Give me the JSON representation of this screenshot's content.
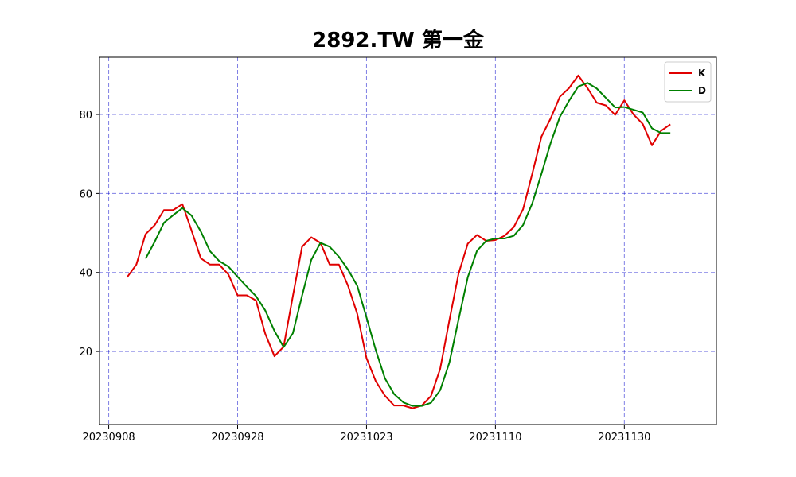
{
  "chart_data": {
    "type": "line",
    "title": "2892.TW 第一金",
    "xlabel": "",
    "ylabel": "",
    "x_tick_labels": [
      "20230908",
      "20230928",
      "20231023",
      "20231110",
      "20231130"
    ],
    "x_tick_index": [
      -2,
      12,
      26,
      40,
      54
    ],
    "x_range": [
      -3,
      64
    ],
    "y_ticks": [
      20,
      40,
      60,
      80
    ],
    "ylim": [
      1.5,
      94.5
    ],
    "grid": true,
    "grid_color": "#0000cc",
    "legend_position": "top-right",
    "series": [
      {
        "name": "K",
        "color": "#e00000",
        "start_index": 0,
        "values": [
          38.8,
          42.0,
          49.7,
          52.0,
          55.8,
          55.8,
          57.3,
          50.6,
          43.6,
          42.0,
          42.0,
          39.5,
          34.2,
          34.2,
          32.9,
          24.5,
          18.8,
          21.2,
          34.0,
          46.5,
          48.9,
          47.5,
          42.0,
          42.0,
          36.6,
          29.5,
          18.3,
          12.5,
          8.8,
          6.3,
          6.3,
          5.6,
          6.3,
          8.7,
          15.6,
          27.9,
          39.7,
          47.3,
          49.5,
          48.0,
          48.2,
          49.3,
          51.5,
          56.0,
          65.0,
          74.4,
          79.0,
          84.5,
          86.7,
          89.9,
          86.7,
          83.0,
          82.3,
          79.9,
          83.6,
          80.0,
          77.6,
          72.2,
          75.9,
          77.5
        ]
      },
      {
        "name": "D",
        "color": "#008000",
        "start_index": 2,
        "values": [
          43.5,
          47.8,
          52.6,
          54.5,
          56.3,
          54.4,
          50.4,
          45.4,
          42.9,
          41.5,
          38.9,
          36.4,
          34.0,
          30.4,
          25.2,
          21.1,
          24.6,
          34.1,
          43.2,
          47.5,
          46.5,
          44.0,
          40.7,
          36.6,
          28.6,
          20.4,
          13.2,
          9.2,
          7.1,
          6.2,
          6.2,
          7.0,
          10.2,
          17.2,
          28.1,
          38.8,
          45.5,
          48.0,
          48.6,
          48.6,
          49.3,
          52.0,
          57.5,
          65.0,
          72.8,
          79.4,
          83.5,
          87.1,
          88.0,
          86.6,
          84.2,
          81.8,
          81.9,
          81.2,
          80.5,
          76.5,
          75.3,
          75.3
        ]
      }
    ]
  }
}
